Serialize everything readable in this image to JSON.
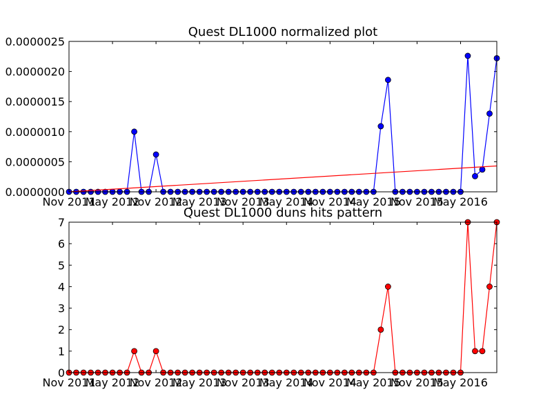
{
  "chart_data": [
    {
      "type": "line",
      "title": "Quest DL1000 normalized plot",
      "xlabel": "",
      "ylabel": "",
      "x_ticks": [
        "Nov 2011",
        "May 2012",
        "Nov 2012",
        "May 2013",
        "Nov 2013",
        "May 2014",
        "Nov 2014",
        "May 2015",
        "Nov 2015",
        "May 2016"
      ],
      "y_ticks": [
        "0.0000000",
        "0.0000005",
        "0.0000010",
        "0.0000015",
        "0.0000020",
        "0.0000025"
      ],
      "ylim": [
        0,
        2.5e-06
      ],
      "x": [
        "2011-11",
        "2011-12",
        "2012-01",
        "2012-02",
        "2012-03",
        "2012-04",
        "2012-05",
        "2012-06",
        "2012-07",
        "2012-08",
        "2012-09",
        "2012-10",
        "2012-11",
        "2012-12",
        "2013-01",
        "2013-02",
        "2013-03",
        "2013-04",
        "2013-05",
        "2013-06",
        "2013-07",
        "2013-08",
        "2013-09",
        "2013-10",
        "2013-11",
        "2013-12",
        "2014-01",
        "2014-02",
        "2014-03",
        "2014-04",
        "2014-05",
        "2014-06",
        "2014-07",
        "2014-08",
        "2014-09",
        "2014-10",
        "2014-11",
        "2014-12",
        "2015-01",
        "2015-02",
        "2015-03",
        "2015-04",
        "2015-05",
        "2015-06",
        "2015-07",
        "2015-08",
        "2015-09",
        "2015-10",
        "2015-11",
        "2015-12",
        "2016-01",
        "2016-02",
        "2016-03",
        "2016-04",
        "2016-05",
        "2016-06",
        "2016-07",
        "2016-08",
        "2016-09",
        "2016-10"
      ],
      "series": [
        {
          "color": "#0000ff",
          "marker": "circle",
          "values": [
            0,
            0,
            0,
            0,
            0,
            0,
            0,
            0,
            0,
            1e-06,
            0,
            0,
            6.2e-07,
            0,
            0,
            0,
            0,
            0,
            0,
            0,
            0,
            0,
            0,
            0,
            0,
            0,
            0,
            0,
            0,
            0,
            0,
            0,
            0,
            0,
            0,
            0,
            0,
            0,
            0,
            0,
            0,
            0,
            0,
            1.09e-06,
            1.86e-06,
            0,
            0,
            0,
            0,
            0,
            0,
            0,
            0,
            0,
            0,
            2.26e-06,
            2.6e-07,
            3.7e-07,
            1.3e-06,
            2.22e-06
          ]
        },
        {
          "color": "#ff0000",
          "marker": "none",
          "trend": true,
          "values_endpoints": [
            0,
            4.3e-07
          ]
        }
      ],
      "grid": false
    },
    {
      "type": "line",
      "title": "Quest DL1000 duns hits pattern",
      "xlabel": "",
      "ylabel": "",
      "x_ticks": [
        "Nov 2011",
        "May 2012",
        "Nov 2012",
        "May 2013",
        "Nov 2013",
        "May 2014",
        "Nov 2014",
        "May 2015",
        "Nov 2015",
        "May 2016"
      ],
      "y_ticks": [
        "0",
        "1",
        "2",
        "3",
        "4",
        "5",
        "6",
        "7"
      ],
      "ylim": [
        0,
        7
      ],
      "x": [
        "2011-11",
        "2011-12",
        "2012-01",
        "2012-02",
        "2012-03",
        "2012-04",
        "2012-05",
        "2012-06",
        "2012-07",
        "2012-08",
        "2012-09",
        "2012-10",
        "2012-11",
        "2012-12",
        "2013-01",
        "2013-02",
        "2013-03",
        "2013-04",
        "2013-05",
        "2013-06",
        "2013-07",
        "2013-08",
        "2013-09",
        "2013-10",
        "2013-11",
        "2013-12",
        "2014-01",
        "2014-02",
        "2014-03",
        "2014-04",
        "2014-05",
        "2014-06",
        "2014-07",
        "2014-08",
        "2014-09",
        "2014-10",
        "2014-11",
        "2014-12",
        "2015-01",
        "2015-02",
        "2015-03",
        "2015-04",
        "2015-05",
        "2015-06",
        "2015-07",
        "2015-08",
        "2015-09",
        "2015-10",
        "2015-11",
        "2015-12",
        "2016-01",
        "2016-02",
        "2016-03",
        "2016-04",
        "2016-05",
        "2016-06",
        "2016-07",
        "2016-08",
        "2016-09",
        "2016-10"
      ],
      "series": [
        {
          "color": "#ff0000",
          "marker": "circle",
          "values": [
            0,
            0,
            0,
            0,
            0,
            0,
            0,
            0,
            0,
            1,
            0,
            0,
            1,
            0,
            0,
            0,
            0,
            0,
            0,
            0,
            0,
            0,
            0,
            0,
            0,
            0,
            0,
            0,
            0,
            0,
            0,
            0,
            0,
            0,
            0,
            0,
            0,
            0,
            0,
            0,
            0,
            0,
            0,
            2,
            4,
            0,
            0,
            0,
            0,
            0,
            0,
            0,
            0,
            0,
            0,
            7,
            1,
            1,
            4,
            7
          ]
        }
      ],
      "grid": false
    }
  ]
}
